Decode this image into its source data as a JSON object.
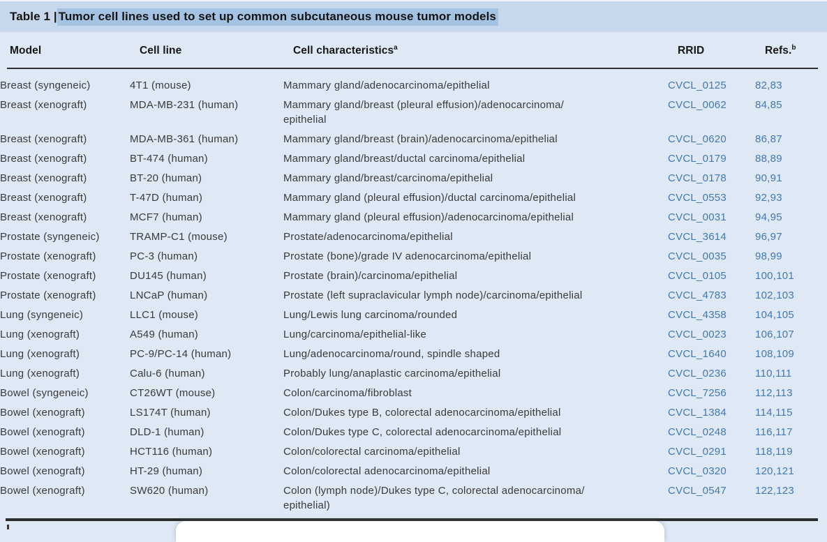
{
  "title": {
    "label_prefix": "Table 1 | ",
    "label_highlighted": "Tumor cell lines used to set up common subcutaneous mouse tumor models"
  },
  "header": {
    "columns": [
      {
        "label": "Model",
        "sup": ""
      },
      {
        "label": "Cell line",
        "sup": ""
      },
      {
        "label": "Cell characteristics",
        "sup": "a"
      },
      {
        "label": "RRID",
        "sup": ""
      },
      {
        "label": "Refs.",
        "sup": "b"
      }
    ]
  },
  "rows": [
    {
      "model": "Breast (syngeneic)",
      "cell_line": "4T1 (mouse)",
      "characteristics": "Mammary gland/adenocarcinoma/epithelial",
      "rrid": "CVCL_0125",
      "refs": "82,83"
    },
    {
      "model": "Breast (xenograft)",
      "cell_line": "MDA-MB-231 (human)",
      "characteristics": "Mammary gland/breast (pleural effusion)/adenocarcinoma/\nepithelial",
      "rrid": "CVCL_0062",
      "refs": "84,85"
    },
    {
      "model": "Breast (xenograft)",
      "cell_line": "MDA-MB-361 (human)",
      "characteristics": "Mammary gland/breast (brain)/adenocarcinoma/epithelial",
      "rrid": "CVCL_0620",
      "refs": "86,87"
    },
    {
      "model": "Breast (xenograft)",
      "cell_line": "BT-474 (human)",
      "characteristics": "Mammary gland/breast/ductal carcinoma/epithelial",
      "rrid": "CVCL_0179",
      "refs": "88,89"
    },
    {
      "model": "Breast (xenograft)",
      "cell_line": "BT-20 (human)",
      "characteristics": "Mammary gland/breast/carcinoma/epithelial",
      "rrid": "CVCL_0178",
      "refs": "90,91"
    },
    {
      "model": "Breast (xenograft)",
      "cell_line": "T-47D (human)",
      "characteristics": "Mammary gland (pleural effusion)/ductal carcinoma/epithelial",
      "rrid": "CVCL_0553",
      "refs": "92,93"
    },
    {
      "model": "Breast (xenograft)",
      "cell_line": "MCF7 (human)",
      "characteristics": "Mammary gland (pleural effusion)/adenocarcinoma/epithelial",
      "rrid": "CVCL_0031",
      "refs": "94,95"
    },
    {
      "model": "Prostate (syngeneic)",
      "cell_line": "TRAMP-C1 (mouse)",
      "characteristics": "Prostate/adenocarcinoma/epithelial",
      "rrid": "CVCL_3614",
      "refs": "96,97"
    },
    {
      "model": "Prostate (xenograft)",
      "cell_line": "PC-3 (human)",
      "characteristics": "Prostate (bone)/grade IV adenocarcinoma/epithelial",
      "rrid": "CVCL_0035",
      "refs": "98,99"
    },
    {
      "model": "Prostate (xenograft)",
      "cell_line": "DU145 (human)",
      "characteristics": "Prostate (brain)/carcinoma/epithelial",
      "rrid": "CVCL_0105",
      "refs": "100,101"
    },
    {
      "model": "Prostate (xenograft)",
      "cell_line": "LNCaP (human)",
      "characteristics": "Prostate (left supraclavicular lymph node)/carcinoma/epithelial",
      "rrid": "CVCL_4783",
      "refs": "102,103"
    },
    {
      "model": "Lung (syngeneic)",
      "cell_line": "LLC1 (mouse)",
      "characteristics": "Lung/Lewis lung carcinoma/rounded",
      "rrid": "CVCL_4358",
      "refs": "104,105"
    },
    {
      "model": "Lung (xenograft)",
      "cell_line": "A549 (human)",
      "characteristics": "Lung/carcinoma/epithelial-like",
      "rrid": "CVCL_0023",
      "refs": "106,107"
    },
    {
      "model": "Lung (xenograft)",
      "cell_line": "PC-9/PC-14 (human)",
      "characteristics": "Lung/adenocarcinoma/round, spindle shaped",
      "rrid": "CVCL_1640",
      "refs": "108,109"
    },
    {
      "model": "Lung (xenograft)",
      "cell_line": "Calu-6 (human)",
      "characteristics": "Probably lung/anaplastic carcinoma/epithelial",
      "rrid": "CVCL_0236",
      "refs": "110,111"
    },
    {
      "model": "Bowel (syngeneic)",
      "cell_line": "CT26WT (mouse)",
      "characteristics": "Colon/carcinoma/fibroblast",
      "rrid": "CVCL_7256",
      "refs": "112,113"
    },
    {
      "model": "Bowel (xenograft)",
      "cell_line": "LS174T (human)",
      "characteristics": "Colon/Dukes type B, colorectal adenocarcinoma/epithelial",
      "rrid": "CVCL_1384",
      "refs": "114,115"
    },
    {
      "model": "Bowel (xenograft)",
      "cell_line": "DLD-1 (human)",
      "characteristics": "Colon/Dukes type C, colorectal adenocarcinoma/epithelial",
      "rrid": "CVCL_0248",
      "refs": "116,117"
    },
    {
      "model": "Bowel (xenograft)",
      "cell_line": "HCT116 (human)",
      "characteristics": "Colon/colorectal carcinoma/epithelial",
      "rrid": "CVCL_0291",
      "refs": "118,119"
    },
    {
      "model": "Bowel (xenograft)",
      "cell_line": "HT-29 (human)",
      "characteristics": "Colon/colorectal adenocarcinoma/epithelial",
      "rrid": "CVCL_0320",
      "refs": "120,121"
    },
    {
      "model": "Bowel (xenograft)",
      "cell_line": "SW620 (human)",
      "characteristics": "Colon (lymph node)/Dukes type C, colorectal adenocarcinoma/\nepithelial)",
      "rrid": "CVCL_0547",
      "refs": "122,123"
    }
  ],
  "colors": {
    "page_bg": "#dfe9f5",
    "title_band_bg": "#c7d8ec",
    "selection_highlight": "#a4c2e2",
    "link_blue": "#4377b0",
    "body_text": "#3a3a3c",
    "heading_text": "#141414",
    "rule_dark": "#2c2c2c",
    "overlay_card_bg": "#ffffff"
  }
}
